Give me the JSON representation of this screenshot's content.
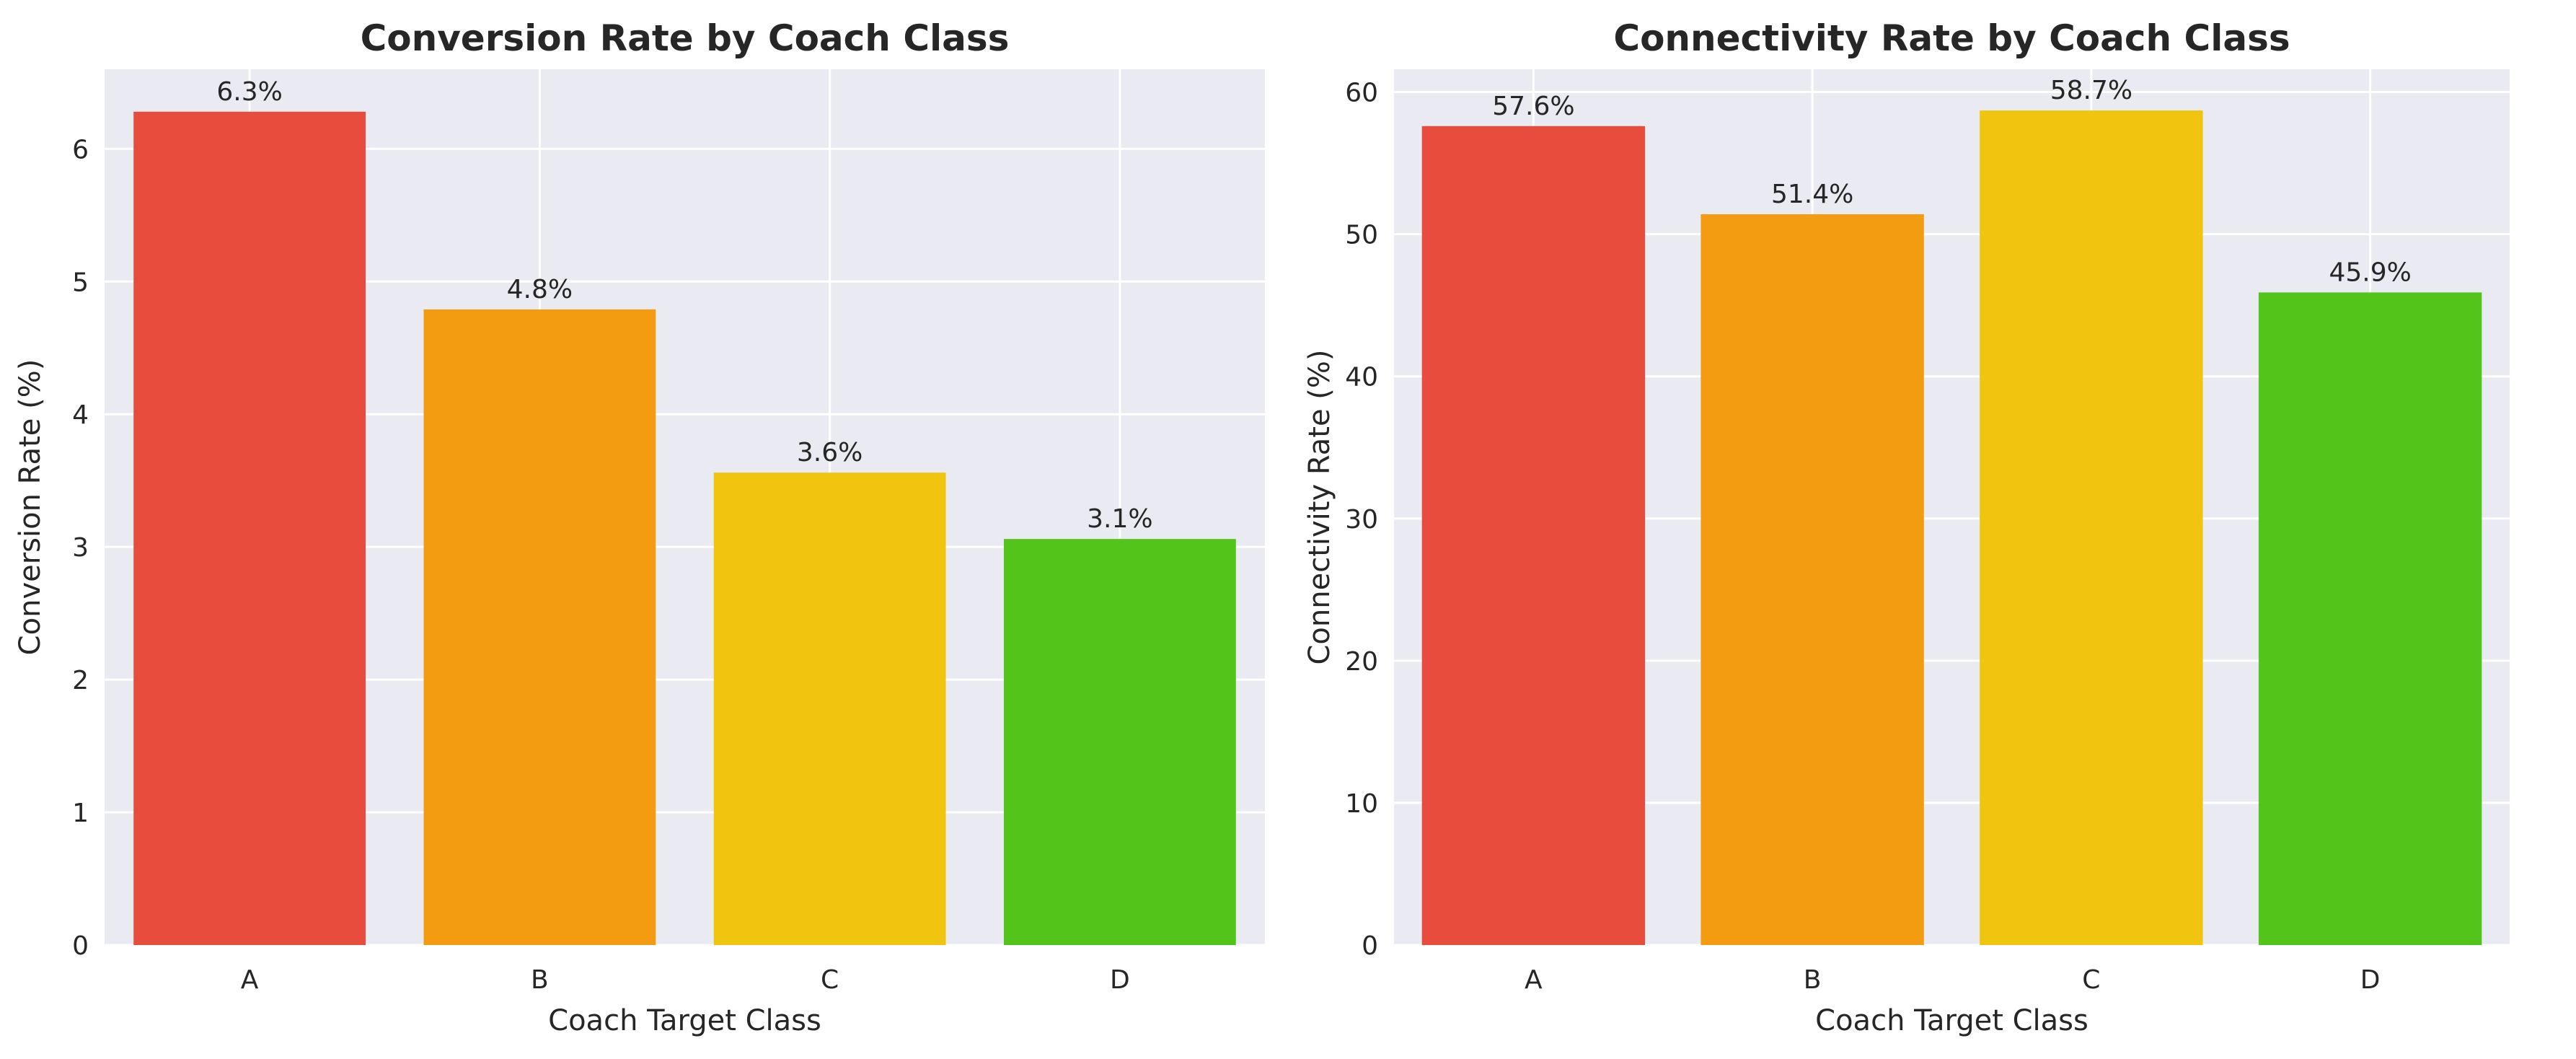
{
  "colors": {
    "plot_background": "#eaeaf2",
    "grid": "#ffffff",
    "text": "#262626"
  },
  "chart_data": [
    {
      "type": "bar",
      "title": "Conversion Rate by Coach Class",
      "xlabel": "Coach Target Class",
      "ylabel": "Conversion Rate (%)",
      "categories": [
        "A",
        "B",
        "C",
        "D"
      ],
      "values": [
        6.28,
        4.79,
        3.56,
        3.06
      ],
      "data_labels": [
        "6.3%",
        "4.8%",
        "3.6%",
        "3.1%"
      ],
      "bar_colors": [
        "#e74c3c",
        "#f39c12",
        "#f1c40f",
        "#52c41a"
      ],
      "ylim": [
        0,
        6.6
      ],
      "yticks": [
        0,
        1,
        2,
        3,
        4,
        5,
        6
      ],
      "grid": true,
      "legend": "none"
    },
    {
      "type": "bar",
      "title": "Connectivity Rate by Coach Class",
      "xlabel": "Coach Target Class",
      "ylabel": "Connectivity Rate (%)",
      "categories": [
        "A",
        "B",
        "C",
        "D"
      ],
      "values": [
        57.6,
        51.4,
        58.7,
        45.9
      ],
      "data_labels": [
        "57.6%",
        "51.4%",
        "58.7%",
        "45.9%"
      ],
      "bar_colors": [
        "#e74c3c",
        "#f39c12",
        "#f1c40f",
        "#52c41a"
      ],
      "ylim": [
        0,
        61.6
      ],
      "yticks": [
        0,
        10,
        20,
        30,
        40,
        50,
        60
      ],
      "grid": true,
      "legend": "none"
    }
  ]
}
